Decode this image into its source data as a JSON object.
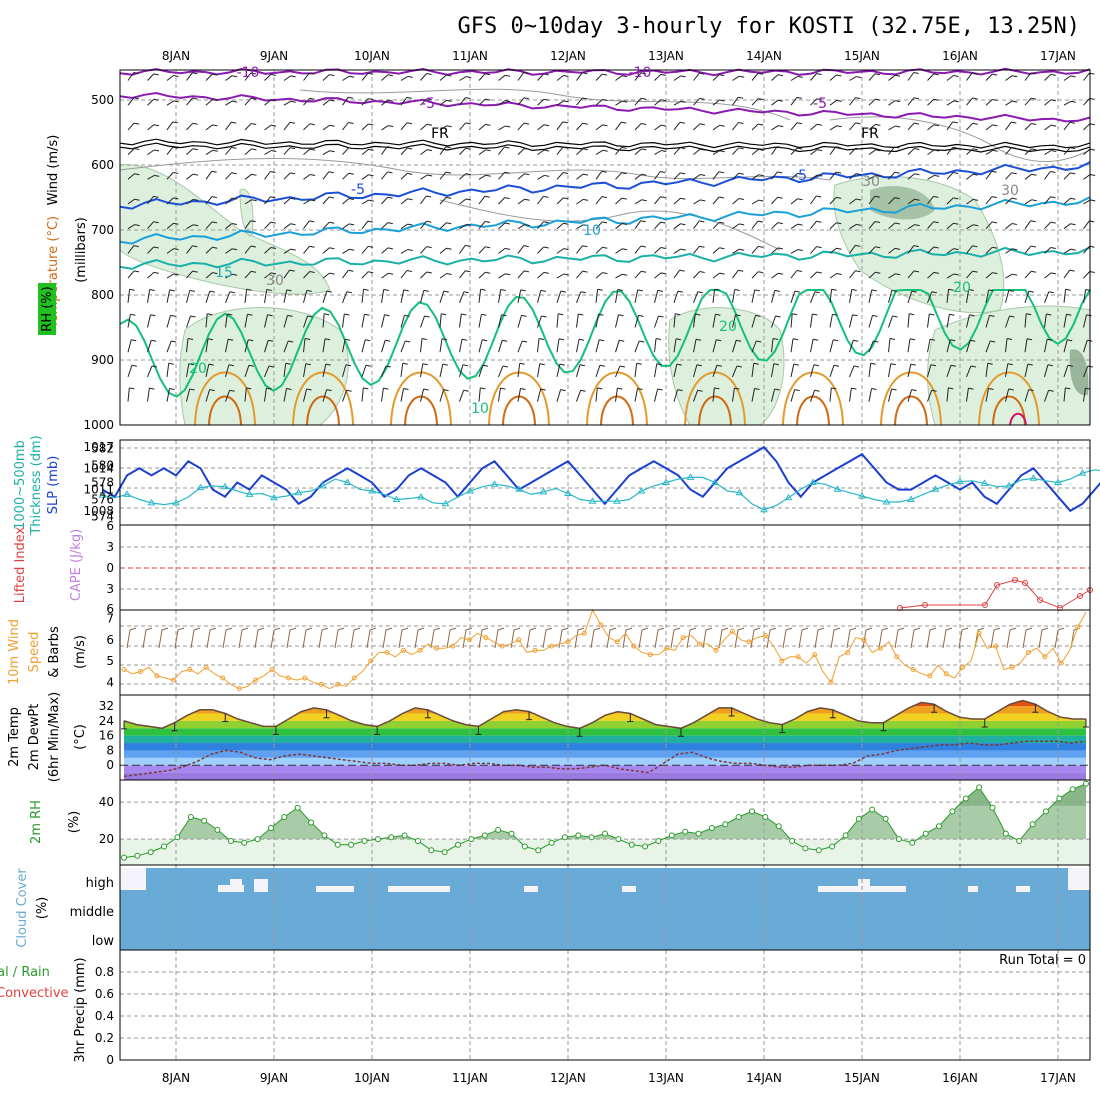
{
  "title": "GFS 0~10day 3-hourly for KOSTI (32.75E, 13.25N)",
  "dates": [
    "8JAN",
    "9JAN",
    "10JAN",
    "11JAN",
    "12JAN",
    "13JAN",
    "14JAN",
    "15JAN",
    "16JAN",
    "17JAN"
  ],
  "colors": {
    "purple": "#8a1ab0",
    "black": "#000000",
    "blue": "#1a4fd6",
    "cyan": "#1aa0d6",
    "teal": "#1ab0a8",
    "green": "#14c07a",
    "orange": "#e39a2a",
    "darkorange": "#d06a14",
    "slp": "#1a3fd0",
    "thick": "#28b8c8",
    "wind10": "#f0a030",
    "barb": "#8a6a4a",
    "rh": "#2a9a2a",
    "cloud": "#6aaad6",
    "cape": "#c080e0",
    "li": "#e04040"
  },
  "panels": {
    "upper": {
      "axis_label_wind": "Wind (m/s)",
      "axis_label_temp": "Temperature (°C)",
      "axis_label_rh": "RH (%)",
      "axis_label_mb": "(millibars)",
      "yticks": [
        "500",
        "600",
        "700",
        "800",
        "900",
        "1000"
      ],
      "contour_labels": [
        "-5",
        "-5",
        "FR",
        "FR",
        "-5",
        "-5",
        "-10",
        "-10",
        "15",
        "20",
        "20",
        "20",
        "10",
        "10",
        "30",
        "30",
        "30"
      ]
    },
    "slp": {
      "label_thick": "1000~500mb",
      "label_thick2": "Thickness (dm)",
      "label_slp": "SLP (mb)",
      "yticks_left": [
        "582",
        "580",
        "578",
        "576",
        "574"
      ],
      "yticks_right": [
        "1017",
        "1014",
        "1011",
        "1008"
      ]
    },
    "cape": {
      "label_li": "Lifted Index",
      "label_cape": "CAPE (J/kg)",
      "yticks": [
        "6",
        "3",
        "0",
        "3",
        "6"
      ]
    },
    "wind10": {
      "label1": "10m Wind",
      "label2": "Speed",
      "label3": "& Barbs",
      "unit": "(m/s)",
      "yticks": [
        "7",
        "6",
        "5",
        "4"
      ]
    },
    "temp2m": {
      "label1": "2m Temp",
      "label2": "2m DewPt",
      "label3": "(6hr Min/Max)",
      "unit": "(°C)",
      "yticks": [
        "32",
        "24",
        "16",
        "8",
        "0"
      ]
    },
    "rh2m": {
      "label": "2m RH",
      "unit": "(%)",
      "yticks": [
        "40",
        "20"
      ]
    },
    "cloud": {
      "label": "Cloud Cover",
      "unit": "(%)",
      "levels": [
        "high",
        "middle",
        "low"
      ]
    },
    "precip": {
      "label1": "tal / Rain",
      "label2": "Convective",
      "label3": "3hr Precip (mm)",
      "run_total": "Run Total = 0",
      "yticks": [
        "0.8",
        "0.6",
        "0.4",
        "0.2",
        "0"
      ]
    }
  },
  "chart_data": [
    {
      "type": "line",
      "name": "SLP",
      "x_start": "7JAN 18Z",
      "x_step_hours": 3,
      "ylim": [
        1006,
        1018
      ],
      "values": [
        1011,
        1010,
        1013,
        1014,
        1013,
        1014,
        1013,
        1015,
        1014,
        1011,
        1010,
        1012,
        1011,
        1013,
        1012,
        1011,
        1009,
        1010,
        1012,
        1013,
        1014,
        1013,
        1012,
        1010,
        1011,
        1013,
        1014,
        1013,
        1012,
        1010,
        1012,
        1014,
        1015,
        1013,
        1011,
        1012,
        1013,
        1014,
        1015,
        1013,
        1011,
        1009,
        1011,
        1013,
        1014,
        1015,
        1014,
        1013,
        1011,
        1010,
        1012,
        1014,
        1015,
        1016,
        1017,
        1015,
        1012,
        1010,
        1012,
        1013,
        1014,
        1015,
        1016,
        1014,
        1012,
        1011,
        1011,
        1012,
        1013,
        1012,
        1011,
        1012,
        1010,
        1009,
        1011,
        1013,
        1014,
        1012,
        1010,
        1008,
        1009,
        1011,
        1013,
        1012,
        1011,
        1010,
        1012,
        1013,
        1012,
        1009,
        1008,
        1010,
        1011,
        1012,
        1010,
        1009,
        1008,
        1009,
        1009,
        1010,
        1011,
        1010,
        1009,
        1010,
        1011
      ],
      "right_axis": [
        1008,
        1011,
        1014,
        1017
      ]
    },
    {
      "type": "line",
      "name": "Thickness",
      "ylim": [
        573,
        583
      ],
      "values": [
        576.5,
        576.2,
        576.6,
        576,
        575.6,
        575.4,
        575.6,
        576.3,
        577.4,
        577.6,
        577.5,
        577,
        576.6,
        576.7,
        576.2,
        576.4,
        576.8,
        577,
        577.6,
        578.4,
        578,
        577.2,
        577,
        576.6,
        576,
        576.1,
        576.3,
        575.6,
        575.5,
        576.3,
        577,
        577.5,
        577.8,
        577.6,
        577.2,
        576.6,
        576.9,
        577.3,
        576.7,
        576,
        575.8,
        575.8,
        575.8,
        576,
        577,
        577.6,
        578,
        578.4,
        578.6,
        578.6,
        578,
        577,
        576.8,
        575.5,
        574.8,
        575.3,
        576.2,
        577.2,
        578,
        577.8,
        577.2,
        576.8,
        576.4,
        576,
        575.7,
        575.7,
        576,
        576.6,
        577.2,
        577.7,
        578.1,
        578.2,
        577.9,
        577.5,
        577.6,
        578.3,
        578.5,
        578.2,
        578,
        578.4,
        579.1,
        579.5,
        579.3,
        579.6,
        579.2,
        578.7,
        578.5,
        578,
        578.1,
        578.6,
        579.3,
        580,
        580.5,
        580.2,
        580.1,
        580.4,
        580.1,
        580.2,
        580.7,
        581.5,
        581.8,
        581.3,
        580.9,
        580.4,
        579.6,
        579.2
      ]
    },
    {
      "type": "line",
      "name": "10m Wind Speed",
      "ylim": [
        3.4,
        7.4
      ],
      "values": [
        4.6,
        4.4,
        4.5,
        4.7,
        4.3,
        4.2,
        4.1,
        4.5,
        4.6,
        4.4,
        4.7,
        4.4,
        4.2,
        3.9,
        3.7,
        3.8,
        4.1,
        4.3,
        4.6,
        4.3,
        4.2,
        4.1,
        4.2,
        4,
        3.9,
        3.7,
        3.9,
        3.8,
        4.2,
        4.5,
        5,
        5.4,
        5.4,
        5.2,
        5.5,
        5.3,
        5.5,
        5.8,
        5.6,
        5.6,
        5.7,
        6.1,
        6,
        6.3,
        6.1,
        5.9,
        5.7,
        5.8,
        6,
        5.4,
        5.5,
        5.5,
        5.7,
        5.8,
        5.9,
        6.2,
        6.3,
        7.4,
        6.7,
        6.1,
        5.9,
        6.3,
        5.7,
        5.4,
        5.3,
        5.3,
        5.6,
        5.5,
        6.1,
        6.2,
        5.8,
        5.8,
        5.5,
        6,
        6.4,
        6,
        5.9,
        6.1,
        6.2,
        5.7,
        5,
        5.2,
        5.2,
        4.9,
        5.3,
        4.5,
        4,
        5.2,
        5.4,
        6.1,
        6,
        5.4,
        5.6,
        5.9,
        5.2,
        4.8,
        4.6,
        4.4,
        4.3,
        4.8,
        4.4,
        4.2,
        4.7,
        5,
        6.3,
        5.6,
        5.7,
        4.6,
        4.7,
        4.9,
        5.4,
        5.6,
        5.2,
        5.6,
        4.9,
        5.5,
        6.6,
        7.3
      ]
    },
    {
      "type": "area",
      "name": "2m Temp",
      "ylim": [
        -8,
        38
      ],
      "temp": [
        24,
        22,
        21,
        20,
        23,
        27,
        30,
        30,
        28,
        25,
        23,
        21,
        21,
        25,
        29,
        31,
        30,
        27,
        24,
        22,
        21,
        24,
        28,
        31,
        30,
        27,
        24,
        22,
        21,
        25,
        29,
        30,
        29,
        26,
        23,
        21,
        20,
        23,
        27,
        29,
        28,
        25,
        22,
        21,
        20,
        23,
        27,
        31,
        31,
        28,
        25,
        23,
        22,
        25,
        29,
        31,
        30,
        27,
        24,
        23,
        23,
        27,
        31,
        34,
        33,
        29,
        26,
        25,
        25,
        29,
        33,
        35,
        33,
        29,
        26,
        25,
        25
      ],
      "dewpt": [
        -6,
        -5,
        -4,
        -3,
        -1,
        2,
        6,
        8,
        7,
        4,
        3,
        5,
        6,
        5,
        4,
        3,
        2,
        1,
        1,
        0,
        0,
        1,
        1,
        0,
        1,
        1,
        0,
        0,
        -1,
        -1,
        -2,
        -2,
        -1,
        0,
        -2,
        -3,
        -4,
        1,
        6,
        7,
        4,
        2,
        1,
        1,
        0,
        -1,
        -1,
        0,
        0,
        0,
        1,
        5,
        6,
        8,
        9,
        10,
        11,
        11,
        12,
        11,
        11,
        12,
        13,
        13,
        13,
        12,
        13
      ]
    },
    {
      "type": "area",
      "name": "2m RH",
      "ylim": [
        6,
        52
      ],
      "values": [
        10,
        11,
        13,
        16,
        21,
        32,
        30,
        25,
        19,
        18,
        20,
        26,
        32,
        37,
        29,
        22,
        17,
        17,
        19,
        20,
        21,
        22,
        19,
        14,
        13,
        17,
        20,
        22,
        25,
        23,
        16,
        14,
        18,
        21,
        22,
        21,
        23,
        20,
        17,
        16,
        19,
        22,
        24,
        23,
        26,
        28,
        32,
        35,
        32,
        27,
        19,
        15,
        14,
        16,
        22,
        31,
        36,
        31,
        20,
        18,
        23,
        27,
        35,
        42,
        48,
        37,
        23,
        19,
        28,
        35,
        42,
        47,
        50
      ]
    },
    {
      "type": "bar",
      "name": "Cloud Cover",
      "levels": [
        "high",
        "middle",
        "low"
      ],
      "high_gap_segments": [
        [
          0,
          0.35
        ],
        [
          9.2,
          9.6
        ],
        [
          10.6,
          11
        ],
        [
          11.5,
          11.75
        ]
      ],
      "value": 100
    },
    {
      "type": "bar",
      "name": "3hr Precip",
      "ylim": [
        0,
        1
      ],
      "values": [],
      "run_total": 0
    }
  ]
}
